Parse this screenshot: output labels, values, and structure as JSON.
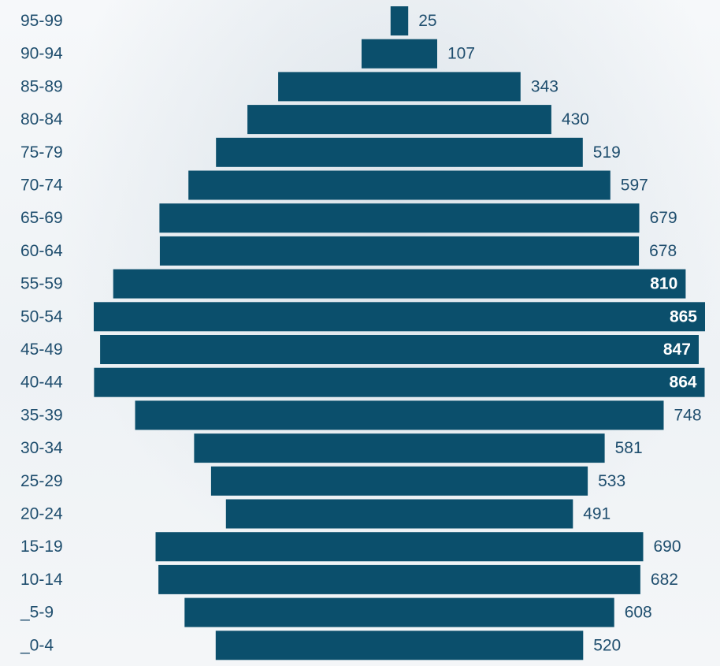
{
  "chart_data": {
    "type": "bar",
    "orientation": "horizontal-centered",
    "title": "",
    "xlabel": "",
    "ylabel": "",
    "categories": [
      "95-99",
      "90-94",
      "85-89",
      "80-84",
      "75-79",
      "70-74",
      "65-69",
      "60-64",
      "55-59",
      "50-54",
      "45-49",
      "40-44",
      "35-39",
      "30-34",
      "25-29",
      "20-24",
      "15-19",
      "10-14",
      "_5-9",
      "_0-4"
    ],
    "values": [
      25,
      107,
      343,
      430,
      519,
      597,
      679,
      678,
      810,
      865,
      847,
      864,
      748,
      581,
      533,
      491,
      690,
      682,
      608,
      520
    ],
    "data_labels": [
      "25",
      "107",
      "343",
      "430",
      "519",
      "597",
      "679",
      "678",
      "810",
      "865",
      "847",
      "864",
      "748",
      "581",
      "533",
      "491",
      "690",
      "682",
      "608",
      "520"
    ],
    "xlim": [
      0,
      865
    ],
    "grid": false,
    "legend": "none",
    "bar_color": "#0b4f6c",
    "label_color": "#1f4e6e"
  }
}
